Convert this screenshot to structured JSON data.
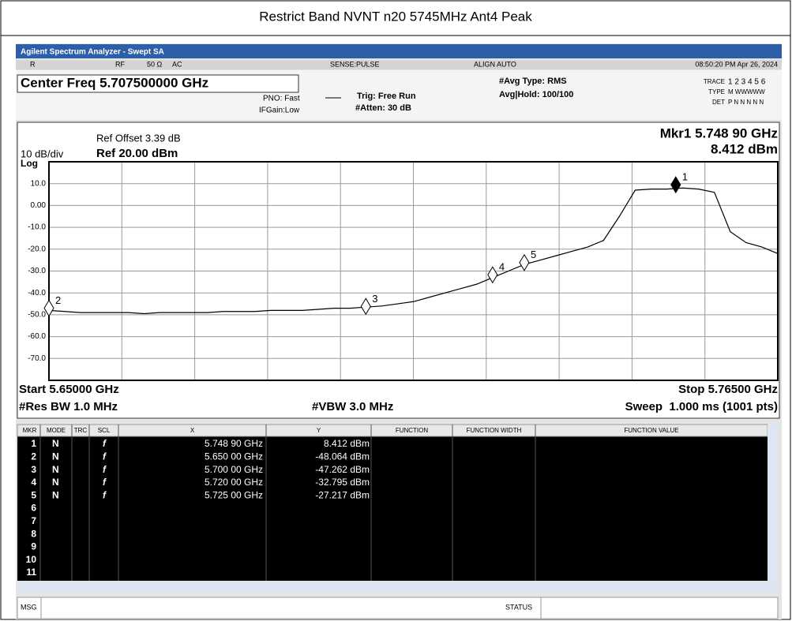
{
  "header": {
    "title": "Restrict Band NVNT n20 5745MHz Ant4 Peak"
  },
  "window": {
    "title": "Agilent Spectrum Analyzer - Swept SA"
  },
  "status_row": {
    "mode": "R",
    "rf": "RF",
    "impedance": "50 Ω",
    "coupling": "AC",
    "sense": "SENSE:PULSE",
    "align": "ALIGN AUTO",
    "time": "08:50:20 PM Apr 26, 2024"
  },
  "settings": {
    "center_freq": "Center Freq 5.707500000 GHz",
    "pno": "PNO: Fast",
    "ifgain": "IFGain:Low",
    "trig": "Trig: Free Run",
    "atten": "#Atten: 30 dB",
    "avg_type": "#Avg Type: RMS",
    "avg_hold": "Avg|Hold: 100/100",
    "trace_label": "TRACE",
    "trace_nums": "1 2 3 4 5 6",
    "type_label": "TYPE",
    "type_vals": "M WWWWW",
    "det_label": "DET",
    "det_vals": "P N N N N N"
  },
  "plot": {
    "ref_offset": "Ref Offset 3.39 dB",
    "scale": "10 dB/div",
    "ref_level": "Ref 20.00 dBm",
    "log": "Log",
    "marker_readout": "Mkr1 5.748 90 GHz",
    "marker_readout_value": "8.412 dBm",
    "start": "Start 5.65000 GHz",
    "stop": "Stop 5.76500 GHz",
    "rbw": "#Res BW 1.0 MHz",
    "vbw": "#VBW 3.0 MHz",
    "sweep": "Sweep  1.000 ms (1001 pts)",
    "xlim": [
      5.65,
      5.765
    ],
    "ylim": [
      -80,
      20
    ],
    "xticks": [
      5.65,
      5.6615,
      5.673,
      5.6845,
      5.696,
      5.7075,
      5.719,
      5.7305,
      5.742,
      5.7535,
      5.765
    ],
    "yticks": [
      20,
      {
        "value": 10,
        "label": "10.0"
      },
      {
        "value": 0,
        "label": "0.00"
      },
      {
        "value": -10,
        "label": "-10.0"
      },
      {
        "value": -20,
        "label": "-20.0"
      },
      {
        "value": -30,
        "label": "-30.0"
      },
      {
        "value": -40,
        "label": "-40.0"
      },
      {
        "value": -50,
        "label": "-50.0"
      },
      {
        "value": -60,
        "label": "-60.0"
      },
      {
        "value": -70,
        "label": "-70.0"
      },
      -80
    ],
    "trace": {
      "color": "#000000",
      "x": [
        5.65,
        5.6525,
        5.655,
        5.6575,
        5.66,
        5.6625,
        5.665,
        5.6675,
        5.67,
        5.6725,
        5.675,
        5.6775,
        5.68,
        5.6825,
        5.685,
        5.6875,
        5.69,
        5.6925,
        5.695,
        5.6975,
        5.7,
        5.7025,
        5.705,
        5.7075,
        5.71,
        5.7125,
        5.715,
        5.7175,
        5.72,
        5.7225,
        5.725,
        5.7275,
        5.73,
        5.7325,
        5.735,
        5.7375,
        5.74,
        5.7425,
        5.745,
        5.7475,
        5.75,
        5.7525,
        5.755,
        5.7575,
        5.76,
        5.7625,
        5.765
      ],
      "values": [
        -48,
        -48.5,
        -49,
        -49,
        -49,
        -49,
        -49.5,
        -49,
        -49,
        -49,
        -49,
        -48.5,
        -48.5,
        -48.5,
        -48,
        -48,
        -48,
        -47.5,
        -47,
        -47,
        -46.5,
        -46,
        -45,
        -44,
        -42,
        -40,
        -38,
        -36,
        -33,
        -30,
        -27,
        -25,
        -23,
        -21,
        -19,
        -16,
        -5,
        7,
        7.5,
        7.5,
        8,
        7.5,
        6,
        -12,
        -17,
        -19,
        -22
      ]
    }
  },
  "table": {
    "columns": [
      "MKR",
      "MODE",
      "TRC",
      "SCL",
      "X",
      "Y",
      "FUNCTION",
      "FUNCTION WIDTH",
      "FUNCTION VALUE"
    ],
    "markers": [
      {
        "n": 1,
        "mode": "N",
        "trc": "1",
        "scl": "f",
        "x": 5.7489,
        "x_label": "5.748 90 GHz",
        "y": 8.412,
        "y_label": "8.412 dBm"
      },
      {
        "n": 2,
        "mode": "N",
        "trc": "1",
        "scl": "f",
        "x": 5.65,
        "x_label": "5.650 00 GHz",
        "y": -48.064,
        "y_label": "-48.064 dBm"
      },
      {
        "n": 3,
        "mode": "N",
        "trc": "1",
        "scl": "f",
        "x": 5.7,
        "x_label": "5.700 00 GHz",
        "y": -47.262,
        "y_label": "-47.262 dBm"
      },
      {
        "n": 4,
        "mode": "N",
        "trc": "1",
        "scl": "f",
        "x": 5.72,
        "x_label": "5.720 00 GHz",
        "y": -32.795,
        "y_label": "-32.795 dBm"
      },
      {
        "n": 5,
        "mode": "N",
        "trc": "1",
        "scl": "f",
        "x": 5.725,
        "x_label": "5.725 00 GHz",
        "y": -27.217,
        "y_label": "-27.217 dBm"
      }
    ],
    "empty_rows": [
      6,
      7,
      8,
      9,
      10,
      11
    ]
  },
  "status_bar": {
    "msg": "MSG",
    "status": "STATUS"
  }
}
